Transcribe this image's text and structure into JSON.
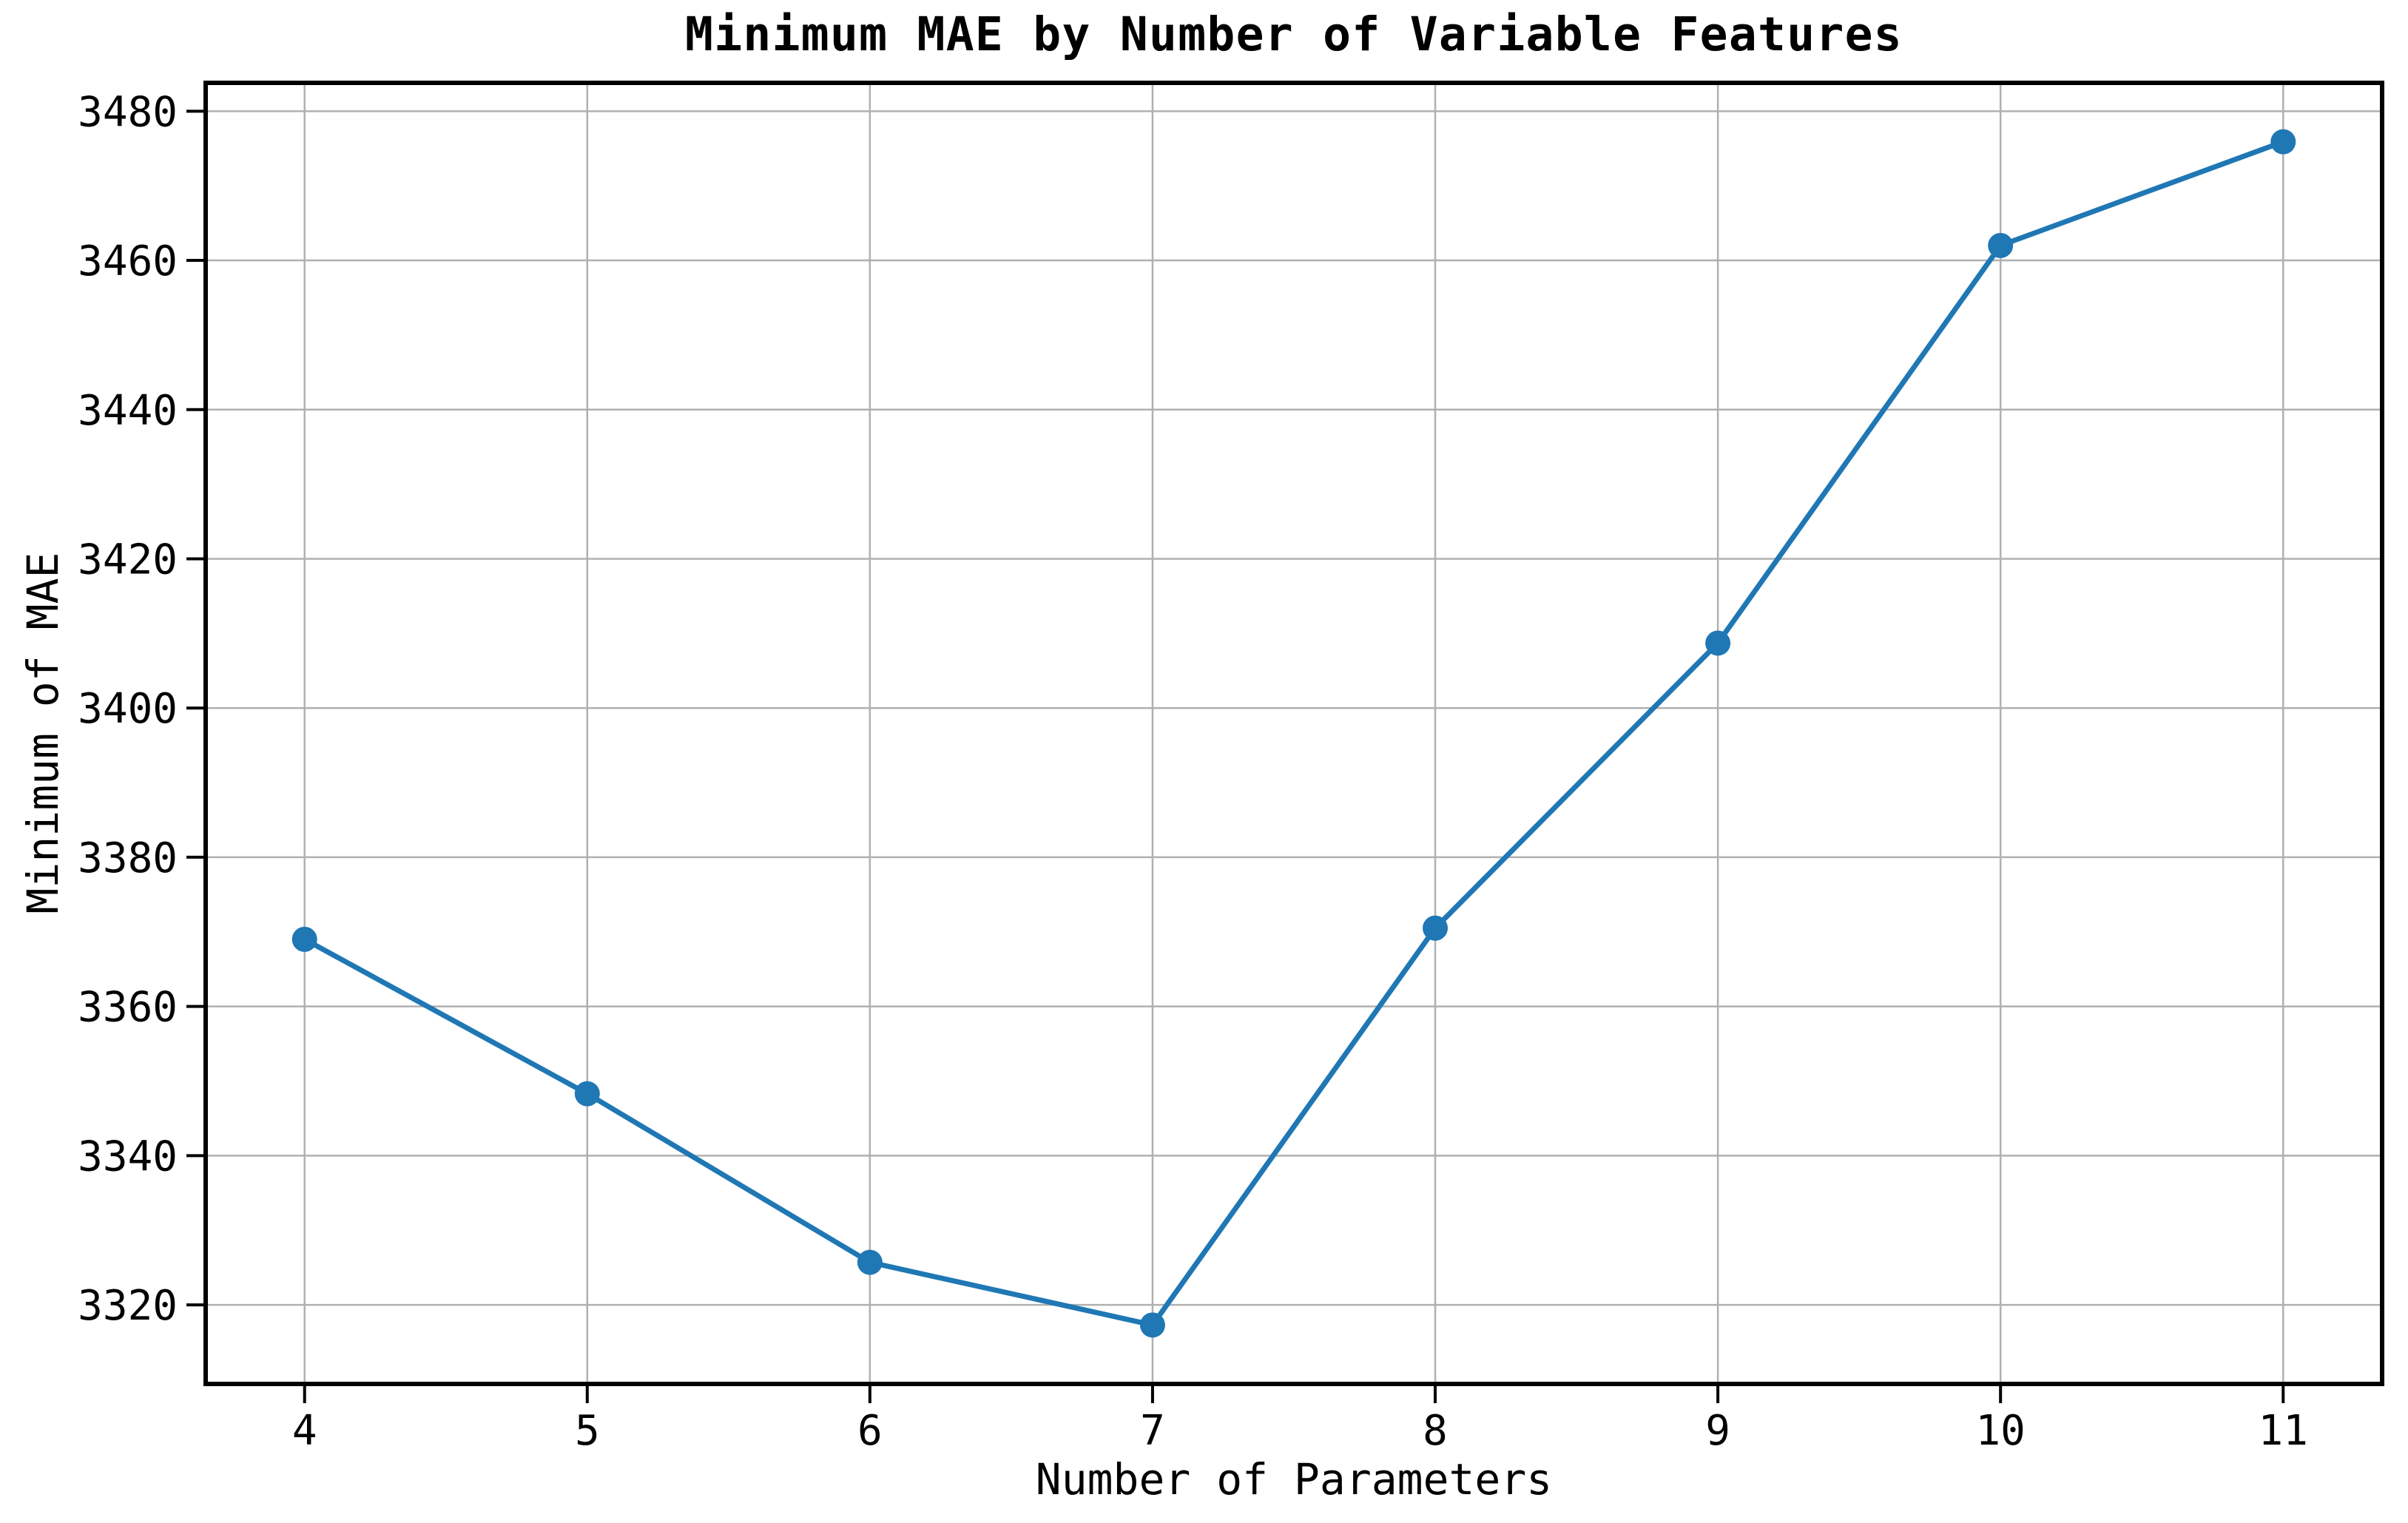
{
  "chart_data": {
    "type": "line",
    "title": "Minimum MAE by Number of Variable Features",
    "xlabel": "Number of Parameters",
    "ylabel": "Minimum of MAE",
    "x": [
      4,
      5,
      6,
      7,
      8,
      9,
      10,
      11
    ],
    "y": [
      3369.0,
      3348.3,
      3325.7,
      3317.3,
      3370.5,
      3408.7,
      3462.0,
      3475.9
    ],
    "series_name": "Minimum MAE",
    "xticks": [
      4,
      5,
      6,
      7,
      8,
      9,
      10,
      11
    ],
    "yticks": [
      3320,
      3340,
      3360,
      3380,
      3400,
      3420,
      3440,
      3460,
      3480
    ],
    "xlim": [
      3.65,
      11.35
    ],
    "ylim": [
      3309.4,
      3483.8
    ],
    "grid": true,
    "legend_position": "none",
    "line_color": "#1f77b4",
    "marker": "circle",
    "marker_color": "#1f77b4",
    "grid_color": "#b0b0b0",
    "axis_color": "#000000",
    "background_color": "#ffffff"
  }
}
